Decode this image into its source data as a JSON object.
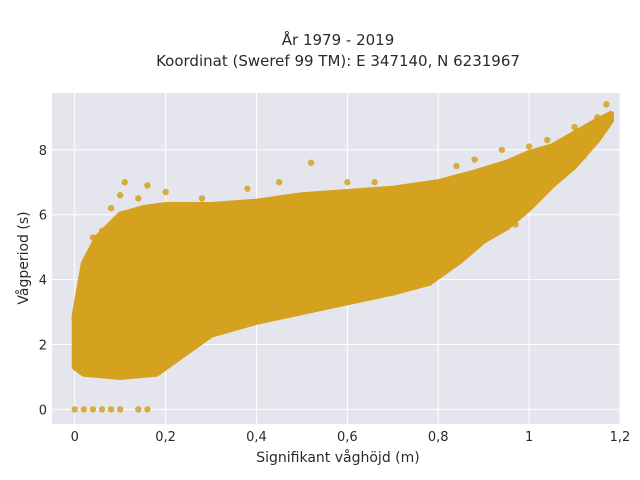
{
  "chart_data": {
    "type": "scatter",
    "title_line1": "År 1979 - 2019",
    "title_line2": "Koordinat (Sweref 99 TM): E 347140, N 6231967",
    "xlabel": "Signifikant våghöjd (m)",
    "ylabel": "Vågperiod (s)",
    "xlim": [
      -0.05,
      1.2
    ],
    "ylim": [
      -0.45,
      9.75
    ],
    "xticks": [
      0,
      0.2,
      0.4,
      0.6,
      0.8,
      1,
      1.2
    ],
    "xtick_labels": [
      "0",
      "0,2",
      "0,4",
      "0,6",
      "0,8",
      "1",
      "1,2"
    ],
    "yticks": [
      0,
      2,
      4,
      6,
      8
    ],
    "ytick_labels": [
      "0",
      "2",
      "4",
      "6",
      "8"
    ],
    "grid": true,
    "legend": "none",
    "marker_color": "#D4A21E",
    "plot_background": "#E5E5EE",
    "series": [
      {
        "values": [
          {
            "x": 0.0,
            "y": 0.0
          },
          {
            "x": 0.02,
            "y": 0.0
          },
          {
            "x": 0.04,
            "y": 0.0
          },
          {
            "x": 0.06,
            "y": 0.0
          },
          {
            "x": 0.08,
            "y": 0.0
          },
          {
            "x": 0.1,
            "y": 0.0
          },
          {
            "x": 0.14,
            "y": 0.0
          },
          {
            "x": 0.16,
            "y": 0.0
          },
          {
            "x": 0.0,
            "y": 1.5
          },
          {
            "x": 0.0,
            "y": 2.1
          },
          {
            "x": 0.0,
            "y": 2.8
          },
          {
            "x": 0.02,
            "y": 1.2
          },
          {
            "x": 0.02,
            "y": 3.5
          },
          {
            "x": 0.03,
            "y": 4.6
          },
          {
            "x": 0.04,
            "y": 1.1
          },
          {
            "x": 0.04,
            "y": 5.3
          },
          {
            "x": 0.05,
            "y": 2.4
          },
          {
            "x": 0.06,
            "y": 5.5
          },
          {
            "x": 0.08,
            "y": 1.1
          },
          {
            "x": 0.08,
            "y": 6.2
          },
          {
            "x": 0.1,
            "y": 1.1
          },
          {
            "x": 0.1,
            "y": 6.6
          },
          {
            "x": 0.11,
            "y": 7.0
          },
          {
            "x": 0.12,
            "y": 1.1
          },
          {
            "x": 0.14,
            "y": 1.2
          },
          {
            "x": 0.14,
            "y": 6.5
          },
          {
            "x": 0.16,
            "y": 1.2
          },
          {
            "x": 0.16,
            "y": 6.9
          },
          {
            "x": 0.18,
            "y": 1.3
          },
          {
            "x": 0.2,
            "y": 1.5
          },
          {
            "x": 0.2,
            "y": 6.7
          },
          {
            "x": 0.22,
            "y": 1.8
          },
          {
            "x": 0.26,
            "y": 2.1
          },
          {
            "x": 0.28,
            "y": 6.5
          },
          {
            "x": 0.3,
            "y": 2.4
          },
          {
            "x": 0.34,
            "y": 2.6
          },
          {
            "x": 0.38,
            "y": 6.8
          },
          {
            "x": 0.4,
            "y": 2.8
          },
          {
            "x": 0.45,
            "y": 7.0
          },
          {
            "x": 0.48,
            "y": 3.0
          },
          {
            "x": 0.52,
            "y": 7.6
          },
          {
            "x": 0.55,
            "y": 3.2
          },
          {
            "x": 0.6,
            "y": 7.0
          },
          {
            "x": 0.62,
            "y": 3.4
          },
          {
            "x": 0.66,
            "y": 7.0
          },
          {
            "x": 0.7,
            "y": 3.6
          },
          {
            "x": 0.75,
            "y": 6.9
          },
          {
            "x": 0.78,
            "y": 3.9
          },
          {
            "x": 0.8,
            "y": 4.3
          },
          {
            "x": 0.84,
            "y": 7.5
          },
          {
            "x": 0.86,
            "y": 4.8
          },
          {
            "x": 0.88,
            "y": 7.7
          },
          {
            "x": 0.9,
            "y": 5.2
          },
          {
            "x": 0.94,
            "y": 8.0
          },
          {
            "x": 0.97,
            "y": 5.7
          },
          {
            "x": 1.0,
            "y": 8.1
          },
          {
            "x": 1.02,
            "y": 6.5
          },
          {
            "x": 1.04,
            "y": 8.3
          },
          {
            "x": 1.07,
            "y": 7.2
          },
          {
            "x": 1.1,
            "y": 8.7
          },
          {
            "x": 1.12,
            "y": 7.8
          },
          {
            "x": 1.15,
            "y": 9.0
          },
          {
            "x": 1.17,
            "y": 9.4
          },
          {
            "x": 1.18,
            "y": 9.1
          }
        ]
      }
    ],
    "density_envelope": {
      "lower": [
        {
          "x": 0.0,
          "y": 1.3
        },
        {
          "x": 0.02,
          "y": 1.1
        },
        {
          "x": 0.1,
          "y": 1.0
        },
        {
          "x": 0.18,
          "y": 1.1
        },
        {
          "x": 0.22,
          "y": 1.5
        },
        {
          "x": 0.3,
          "y": 2.3
        },
        {
          "x": 0.4,
          "y": 2.7
        },
        {
          "x": 0.5,
          "y": 3.0
        },
        {
          "x": 0.6,
          "y": 3.3
        },
        {
          "x": 0.7,
          "y": 3.6
        },
        {
          "x": 0.78,
          "y": 3.9
        },
        {
          "x": 0.85,
          "y": 4.6
        },
        {
          "x": 0.9,
          "y": 5.2
        },
        {
          "x": 0.95,
          "y": 5.6
        },
        {
          "x": 1.0,
          "y": 6.2
        },
        {
          "x": 1.05,
          "y": 6.9
        },
        {
          "x": 1.1,
          "y": 7.5
        },
        {
          "x": 1.15,
          "y": 8.3
        },
        {
          "x": 1.18,
          "y": 8.9
        }
      ],
      "upper": [
        {
          "x": 0.0,
          "y": 2.9
        },
        {
          "x": 0.02,
          "y": 4.5
        },
        {
          "x": 0.05,
          "y": 5.3
        },
        {
          "x": 0.1,
          "y": 6.0
        },
        {
          "x": 0.15,
          "y": 6.2
        },
        {
          "x": 0.2,
          "y": 6.3
        },
        {
          "x": 0.3,
          "y": 6.3
        },
        {
          "x": 0.4,
          "y": 6.4
        },
        {
          "x": 0.5,
          "y": 6.6
        },
        {
          "x": 0.6,
          "y": 6.7
        },
        {
          "x": 0.7,
          "y": 6.8
        },
        {
          "x": 0.8,
          "y": 7.0
        },
        {
          "x": 0.88,
          "y": 7.3
        },
        {
          "x": 0.95,
          "y": 7.6
        },
        {
          "x": 1.0,
          "y": 7.9
        },
        {
          "x": 1.05,
          "y": 8.1
        },
        {
          "x": 1.1,
          "y": 8.5
        },
        {
          "x": 1.15,
          "y": 8.9
        },
        {
          "x": 1.18,
          "y": 9.1
        }
      ]
    }
  }
}
